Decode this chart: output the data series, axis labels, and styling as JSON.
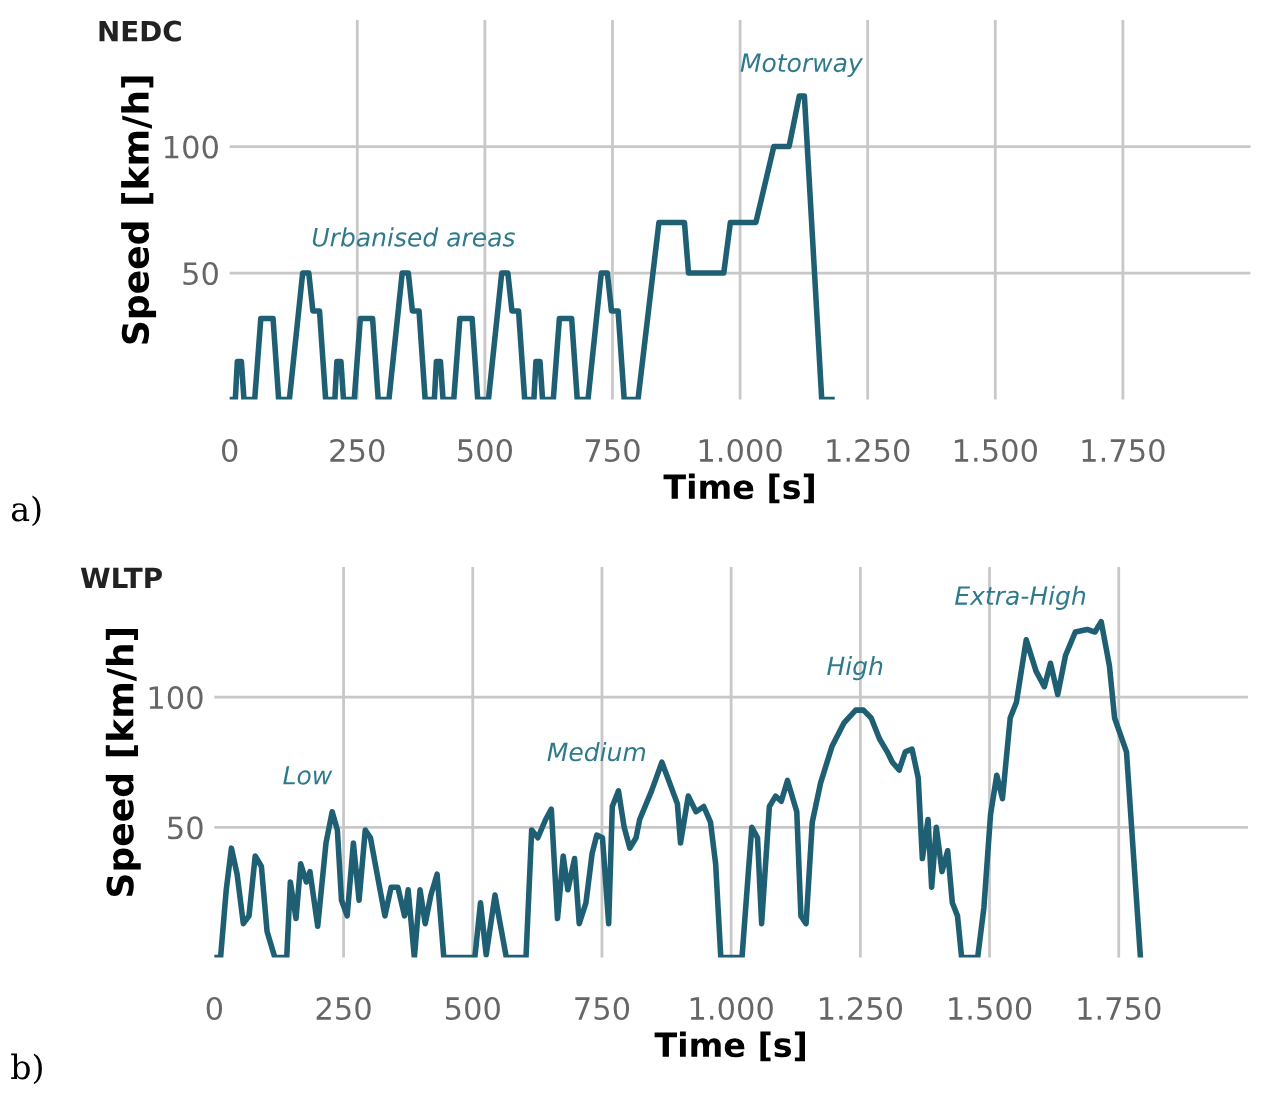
{
  "chart_data": [
    {
      "type": "line",
      "title": "NEDC",
      "xlabel": "Time [s]",
      "ylabel": "Speed [km/h]",
      "grid": true,
      "tick_labels": "xy",
      "xlim": [
        0,
        2000
      ],
      "ylim": [
        0,
        150
      ],
      "xticks": [
        0,
        250,
        500,
        750,
        {
          "value": 1000,
          "label": "1.000"
        },
        {
          "value": 1250,
          "label": "1.250"
        },
        {
          "value": 1500,
          "label": "1.500"
        },
        {
          "value": 1750,
          "label": "1.750"
        }
      ],
      "yticks": [
        50,
        100
      ],
      "x": [
        0,
        11,
        15,
        23,
        28,
        49,
        61,
        85,
        96,
        117,
        143,
        155,
        163,
        176,
        188,
        206,
        210,
        218,
        223,
        244,
        256,
        280,
        291,
        312,
        338,
        350,
        358,
        371,
        383,
        401,
        405,
        413,
        418,
        439,
        451,
        475,
        486,
        507,
        533,
        545,
        553,
        566,
        578,
        596,
        600,
        608,
        613,
        634,
        646,
        670,
        681,
        702,
        728,
        740,
        748,
        761,
        773,
        800,
        841,
        891,
        899,
        968,
        981,
        1031,
        1066,
        1096,
        1116,
        1126,
        1160,
        1180
      ],
      "series": [
        {
          "color": "#1f5f73",
          "values": [
            0,
            0,
            15,
            15,
            0,
            0,
            32,
            32,
            0,
            0,
            50,
            50,
            35,
            35,
            0,
            0,
            15,
            15,
            0,
            0,
            32,
            32,
            0,
            0,
            50,
            50,
            35,
            35,
            0,
            0,
            15,
            15,
            0,
            0,
            32,
            32,
            0,
            0,
            50,
            50,
            35,
            35,
            0,
            0,
            15,
            15,
            0,
            0,
            32,
            32,
            0,
            0,
            50,
            50,
            35,
            35,
            0,
            0,
            70,
            70,
            50,
            50,
            70,
            70,
            100,
            100,
            120,
            120,
            0,
            0
          ]
        }
      ],
      "annotations": [
        "Urbanised areas",
        "Motorway",
        "a)"
      ]
    },
    {
      "type": "line",
      "title": "WLTP",
      "xlabel": "Time [s]",
      "ylabel": "Speed [km/h]",
      "grid": true,
      "xlim": [
        0,
        2000
      ],
      "ylim": [
        0,
        150
      ],
      "xticks": [
        0,
        250,
        500,
        750,
        {
          "value": 1000,
          "label": "1.000"
        },
        {
          "value": 1250,
          "label": "1.250"
        },
        {
          "value": 1500,
          "label": "1.500"
        },
        {
          "value": 1750,
          "label": "1.750"
        }
      ],
      "yticks": [
        50,
        100
      ],
      "x": [
        0,
        12,
        23,
        33,
        44,
        56,
        67,
        79,
        91,
        102,
        117,
        140,
        147,
        158,
        167,
        178,
        185,
        200,
        216,
        228,
        238,
        246,
        257,
        269,
        280,
        292,
        302,
        315,
        330,
        342,
        355,
        368,
        375,
        387,
        398,
        408,
        419,
        431,
        444,
        504,
        515,
        526,
        543,
        553,
        565,
        603,
        614,
        626,
        641,
        652,
        664,
        675,
        684,
        697,
        706,
        719,
        731,
        740,
        751,
        763,
        770,
        782,
        793,
        804,
        816,
        823,
        846,
        866,
        881,
        896,
        902,
        917,
        932,
        947,
        960,
        970,
        980,
        1021,
        1033,
        1040,
        1051,
        1059,
        1074,
        1086,
        1097,
        1109,
        1127,
        1135,
        1145,
        1157,
        1173,
        1195,
        1218,
        1241,
        1256,
        1271,
        1287,
        1302,
        1312,
        1325,
        1337,
        1350,
        1362,
        1370,
        1381,
        1388,
        1397,
        1408,
        1419,
        1428,
        1438,
        1446,
        1477,
        1489,
        1502,
        1514,
        1525,
        1540,
        1552,
        1571,
        1590,
        1606,
        1618,
        1632,
        1647,
        1666,
        1689,
        1704,
        1716,
        1732,
        1742,
        1765,
        1792
      ],
      "series": [
        {
          "color": "#1f5f73",
          "values": [
            0,
            0,
            26,
            42,
            32,
            13,
            16,
            39,
            35,
            10,
            0,
            0,
            29,
            15,
            36,
            29,
            33,
            12,
            44,
            56,
            49,
            22,
            16,
            44,
            22,
            49,
            46,
            32,
            16,
            27,
            27,
            16,
            26,
            0,
            26,
            13,
            24,
            32,
            0,
            0,
            21,
            1,
            24,
            13,
            0,
            0,
            49,
            46,
            53,
            57,
            15,
            39,
            26,
            38,
            13,
            21,
            40,
            47,
            46,
            13,
            58,
            64,
            50,
            42,
            46,
            53,
            64,
            75,
            67,
            59,
            44,
            62,
            56,
            58,
            52,
            36,
            0,
            0,
            32,
            50,
            46,
            13,
            58,
            62,
            60,
            68,
            56,
            16,
            13,
            52,
            67,
            81,
            90,
            95,
            95,
            92,
            84,
            79,
            75,
            72,
            79,
            80,
            69,
            38,
            53,
            27,
            50,
            33,
            41,
            21,
            16,
            0,
            0,
            19,
            55,
            70,
            61,
            92,
            98,
            122,
            110,
            104,
            113,
            101,
            116,
            125,
            126,
            125,
            129,
            112,
            92,
            79,
            0
          ]
        }
      ],
      "annotations": [
        "Low",
        "Medium",
        "High",
        "Extra-High",
        "b)"
      ]
    }
  ]
}
